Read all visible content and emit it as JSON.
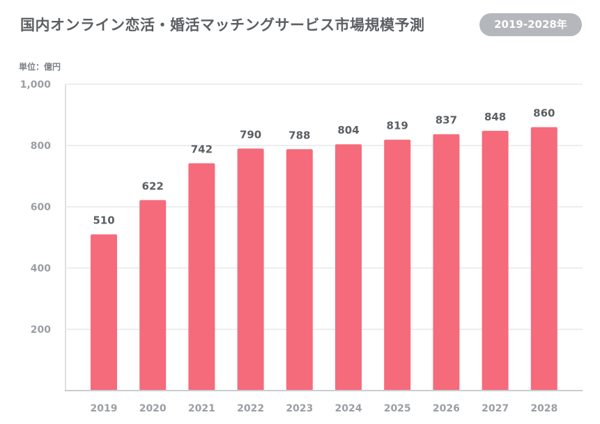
{
  "header": {
    "title": "国内オンライン恋活・婚活マッチングサービス市場規模予測",
    "period_badge": "2019-2028年"
  },
  "unit_label": "単位：億円",
  "colors": {
    "bar": "#f56b7b",
    "axis_text": "#9a9ea3",
    "label_text": "#5b5f63",
    "grid": "#ebedef",
    "badge_bg": "#b4b7bb"
  },
  "chart_data": {
    "type": "bar",
    "title": "国内オンライン恋活・婚活マッチングサービス市場規模予測",
    "xlabel": "",
    "ylabel": "単位：億円",
    "categories": [
      "2019",
      "2020",
      "2021",
      "2022",
      "2023",
      "2024",
      "2025",
      "2026",
      "2027",
      "2028"
    ],
    "values": [
      510,
      622,
      742,
      790,
      788,
      804,
      819,
      837,
      848,
      860
    ],
    "ylim": [
      0,
      1000
    ],
    "yticks": [
      200,
      400,
      600,
      800,
      1000
    ],
    "ytick_labels": [
      "200",
      "400",
      "600",
      "800",
      "1,000"
    ],
    "grid": true
  }
}
